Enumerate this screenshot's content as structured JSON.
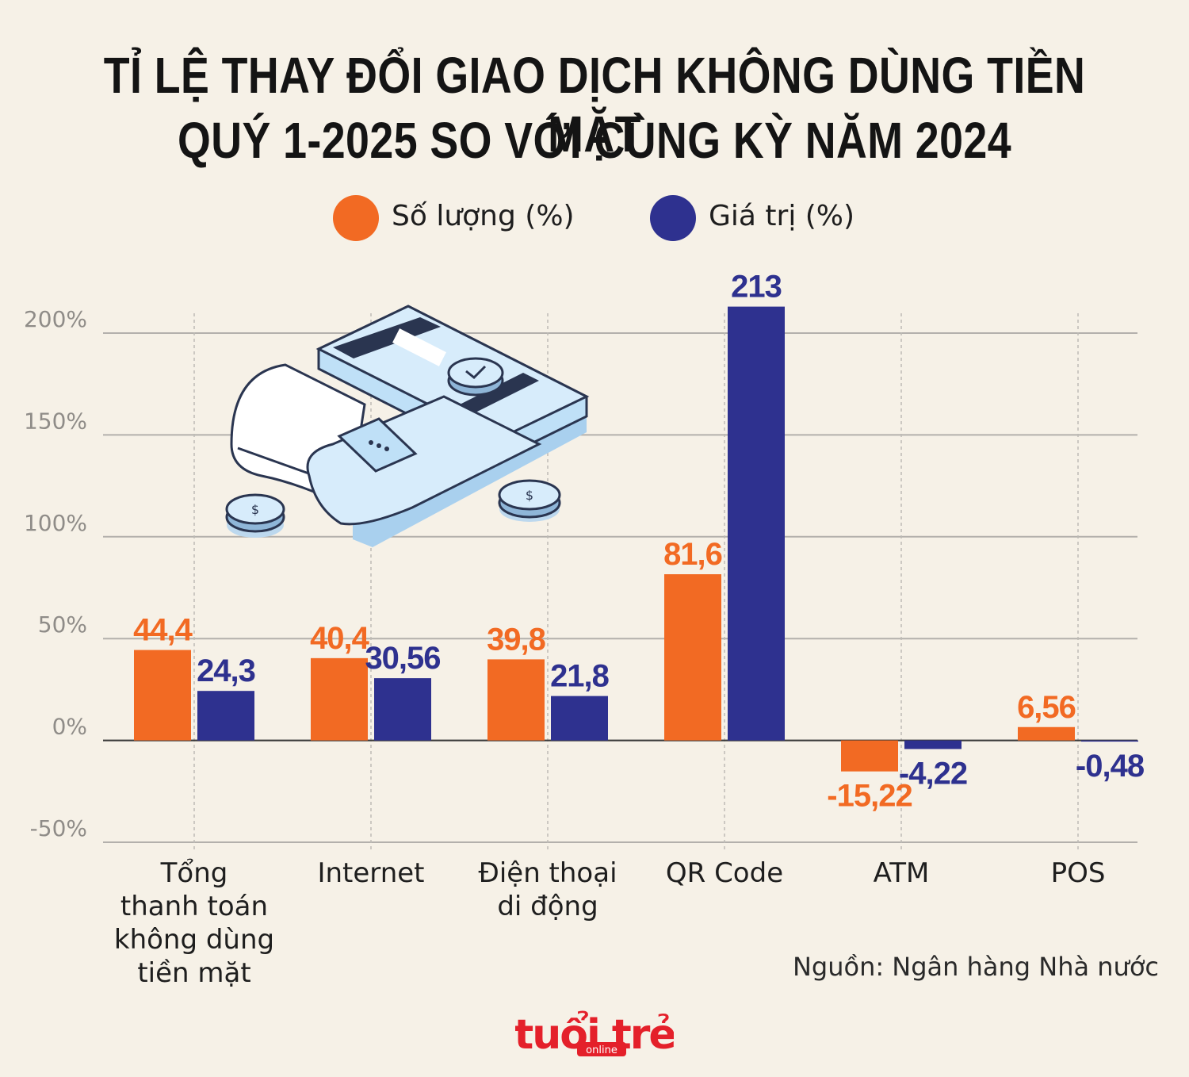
{
  "title": {
    "line1": "TỈ LỆ THAY ĐỔI GIAO DỊCH KHÔNG DÙNG TIỀN MẶT",
    "line2": "QUÝ 1-2025 SO VỚI CÙNG KỲ NĂM 2024"
  },
  "legend": [
    {
      "label": "Số lượng (%)",
      "color": "#f26a23"
    },
    {
      "label": "Giá trị (%)",
      "color": "#2e318f"
    }
  ],
  "source": "Nguồn: Ngân hàng Nhà nước",
  "logo": {
    "main": "tuổi trẻ",
    "sub": "online"
  },
  "chart_data": {
    "type": "bar",
    "categories": [
      [
        "Tổng",
        "thanh toán",
        "không dùng",
        "tiền mặt"
      ],
      [
        "Internet"
      ],
      [
        "Điện thoại",
        "di động"
      ],
      [
        "QR Code"
      ],
      [
        "ATM"
      ],
      [
        "POS"
      ]
    ],
    "series": [
      {
        "name": "Số lượng (%)",
        "color": "#f26a23",
        "values": [
          44.4,
          40.4,
          39.8,
          81.6,
          -15.22,
          6.56
        ],
        "labels": [
          "44,4",
          "40,4",
          "39,8",
          "81,6",
          "-15,22",
          "6,56"
        ]
      },
      {
        "name": "Giá trị (%)",
        "color": "#2e318f",
        "values": [
          24.3,
          30.56,
          21.8,
          213,
          -4.22,
          -0.48
        ],
        "labels": [
          "24,3",
          "30,56",
          "21,8",
          "213",
          "-4,22",
          "-0,48"
        ]
      }
    ],
    "yticks": [
      200,
      150,
      100,
      50,
      0,
      -50
    ],
    "ytick_labels": [
      "200%",
      "150%",
      "100%",
      "50%",
      "0%",
      "-50%"
    ],
    "ylim": [
      -50,
      200
    ],
    "grid": true,
    "legend_position": "top"
  }
}
